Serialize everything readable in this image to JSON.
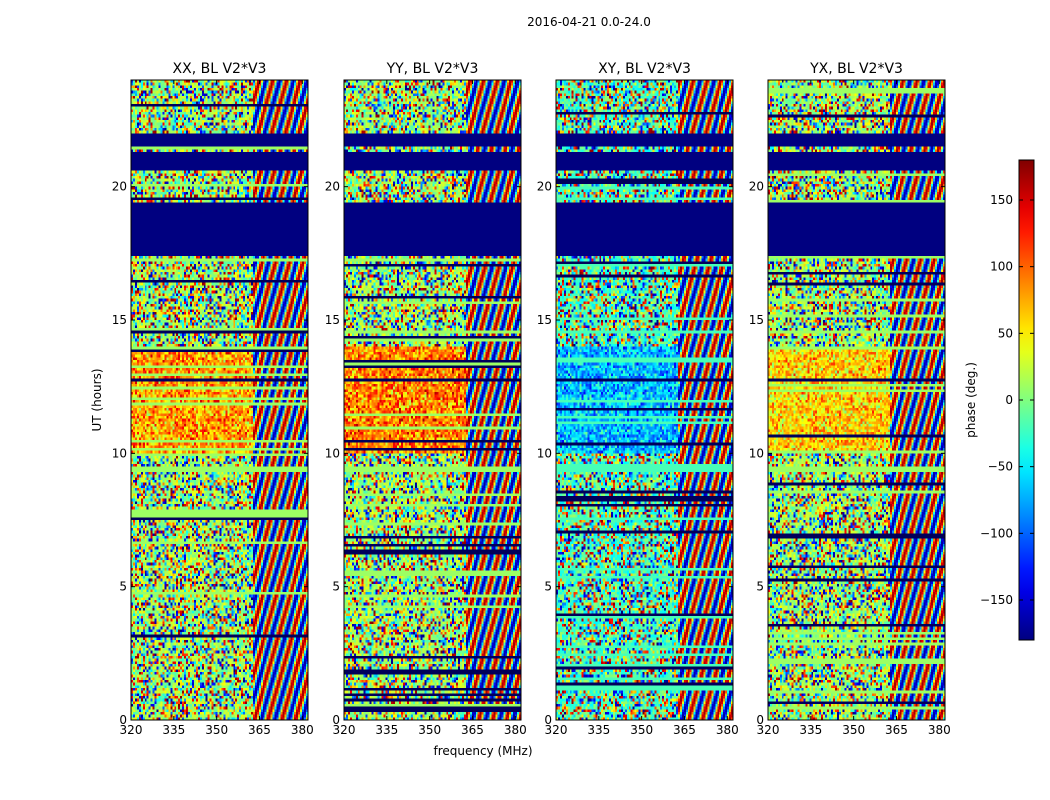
{
  "chart_data": {
    "type": "heatmap",
    "suptitle": "2016-04-21 0.0-24.0",
    "xlabel": "frequency (MHz)",
    "ylabel": "UT (hours)",
    "xlim": [
      320,
      382
    ],
    "ylim": [
      0,
      24
    ],
    "xticks": [
      320,
      335,
      350,
      365,
      380
    ],
    "yticks": [
      0,
      5,
      10,
      15,
      20
    ],
    "panels": [
      {
        "title": "XX, BL V2*V3",
        "region_10_14h": [
          40,
          120
        ],
        "left_phase": 10,
        "flag_bands_h": [
          [
            17.4,
            19.4
          ],
          [
            20.6,
            21.3
          ],
          [
            21.5,
            22.0
          ]
        ]
      },
      {
        "title": "YY, BL V2*V3",
        "region_10_14h": [
          50,
          130
        ],
        "left_phase": 10,
        "flag_bands_h": [
          [
            17.4,
            19.4
          ],
          [
            20.6,
            21.3
          ],
          [
            21.5,
            22.0
          ]
        ]
      },
      {
        "title": "XY, BL V2*V3",
        "region_10_14h": [
          -100,
          -40
        ],
        "left_phase": -20,
        "flag_bands_h": [
          [
            17.4,
            19.4
          ],
          [
            20.6,
            21.3
          ],
          [
            21.5,
            22.0
          ]
        ]
      },
      {
        "title": "YX, BL V2*V3",
        "region_10_14h": [
          30,
          90
        ],
        "left_phase": 10,
        "flag_bands_h": [
          [
            17.4,
            19.4
          ],
          [
            20.6,
            21.3
          ],
          [
            21.5,
            22.0
          ]
        ]
      }
    ],
    "colorbar": {
      "label": "phase (deg.)",
      "range": [
        -180,
        180
      ],
      "ticks": [
        -150,
        -100,
        -50,
        0,
        50,
        100,
        150
      ],
      "colormap": "jet"
    }
  }
}
